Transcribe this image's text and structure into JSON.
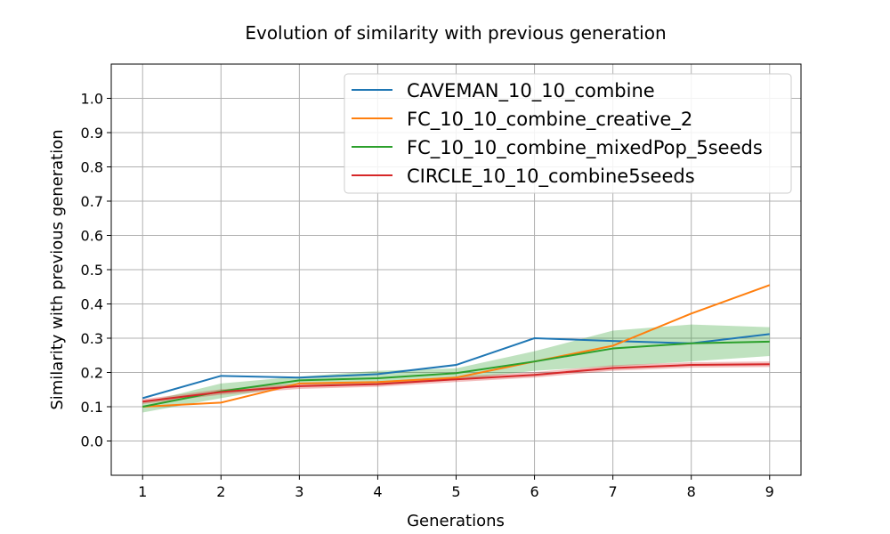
{
  "chart_data": {
    "type": "line",
    "title": "Evolution of similarity with previous generation",
    "xlabel": "Generations",
    "ylabel": "Similarity with previous generation",
    "x": [
      1,
      2,
      3,
      4,
      5,
      6,
      7,
      8,
      9
    ],
    "xticks": [
      "1",
      "2",
      "3",
      "4",
      "5",
      "6",
      "7",
      "8",
      "9"
    ],
    "yticks": [
      "0.0",
      "0.1",
      "0.2",
      "0.3",
      "0.4",
      "0.5",
      "0.6",
      "0.7",
      "0.8",
      "0.9",
      "1.0"
    ],
    "xlim": [
      0.6,
      9.4
    ],
    "ylim": [
      -0.1,
      1.1
    ],
    "grid": true,
    "legend_position": "top-right",
    "series": [
      {
        "name": "CAVEMAN_10_10_combine",
        "color": "#1f77b4",
        "values": [
          0.125,
          0.19,
          0.185,
          0.195,
          0.222,
          0.3,
          0.292,
          0.285,
          0.312
        ]
      },
      {
        "name": "FC_10_10_combine_creative_2",
        "color": "#ff7f0e",
        "values": [
          0.1,
          0.112,
          0.168,
          0.172,
          0.185,
          0.232,
          0.278,
          0.372,
          0.455
        ]
      },
      {
        "name": "FC_10_10_combine_mixedPop_5seeds",
        "color": "#2ca02c",
        "values": [
          0.1,
          0.145,
          0.177,
          0.183,
          0.198,
          0.232,
          0.27,
          0.285,
          0.29
        ],
        "band_lower": [
          0.083,
          0.125,
          0.165,
          0.163,
          0.178,
          0.205,
          0.218,
          0.232,
          0.248
        ],
        "band_upper": [
          0.112,
          0.168,
          0.188,
          0.205,
          0.212,
          0.262,
          0.322,
          0.34,
          0.332
        ]
      },
      {
        "name": "CIRCLE_10_10_combine5seeds",
        "color": "#d62728",
        "values": [
          0.115,
          0.143,
          0.16,
          0.166,
          0.18,
          0.193,
          0.213,
          0.222,
          0.224
        ],
        "band_lower": [
          0.108,
          0.135,
          0.152,
          0.158,
          0.172,
          0.185,
          0.205,
          0.214,
          0.216
        ],
        "band_upper": [
          0.122,
          0.151,
          0.168,
          0.174,
          0.188,
          0.201,
          0.221,
          0.23,
          0.232
        ]
      }
    ]
  }
}
